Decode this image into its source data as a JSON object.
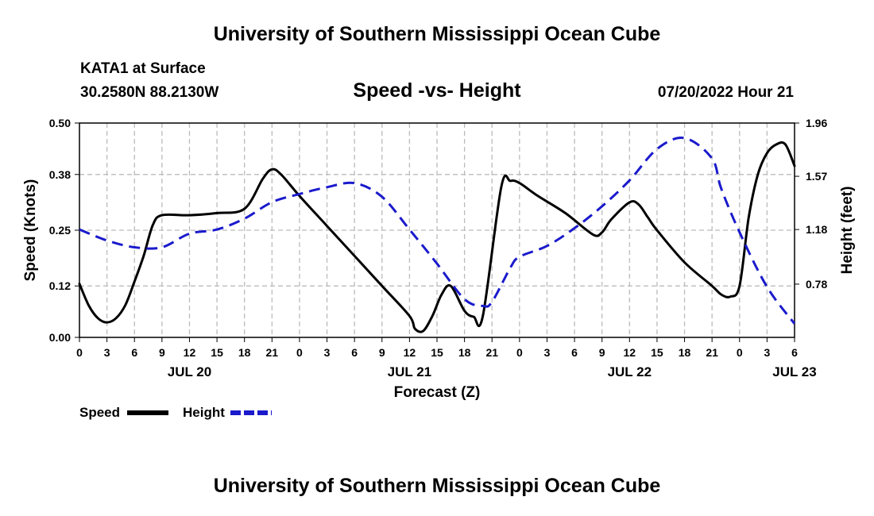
{
  "header": {
    "title": "University of Southern Mississippi Ocean Cube",
    "station": "KATA1 at Surface",
    "coords": "30.2580N  88.2130W",
    "datetime": "07/20/2022 Hour 21",
    "footer_title": "University of Southern Mississippi Ocean Cube"
  },
  "chart_data": {
    "type": "line",
    "title": "Speed -vs- Height",
    "xlabel": "Forecast (Z)",
    "ylabel_left": "Speed (Knots)",
    "ylabel_right": "Height (feet)",
    "x_unit": "hours since JUL 20 00Z",
    "xlim": [
      0,
      78
    ],
    "ylim_left": [
      0,
      0.5
    ],
    "ylim_right": [
      0.39,
      1.96
    ],
    "left_ticks": [
      "0.00",
      "0.12",
      "0.25",
      "0.38",
      "0.50"
    ],
    "right_ticks": [
      "0.78",
      "1.18",
      "1.57",
      "1.96"
    ],
    "x_tick_labels": [
      "0",
      "3",
      "6",
      "9",
      "12",
      "15",
      "18",
      "21",
      "0",
      "3",
      "6",
      "9",
      "12",
      "15",
      "18",
      "21",
      "0",
      "3",
      "6",
      "9",
      "12",
      "15",
      "18",
      "21",
      "0",
      "3",
      "6"
    ],
    "date_labels": [
      {
        "text": "JUL 20",
        "hour": 12
      },
      {
        "text": "JUL 21",
        "hour": 36
      },
      {
        "text": "JUL 22",
        "hour": 60
      },
      {
        "text": "JUL 23",
        "hour": 78
      }
    ],
    "legend": [
      {
        "name": "Speed",
        "color": "#000000",
        "dash": false
      },
      {
        "name": "Height",
        "color": "#1a1acc",
        "dash": true
      }
    ],
    "series": [
      {
        "name": "Speed",
        "axis": "left",
        "color": "#000000",
        "x": [
          0,
          1,
          2,
          3,
          4,
          5,
          6,
          7,
          8,
          9,
          12,
          15,
          18,
          20,
          21,
          22,
          24,
          27,
          30,
          33,
          36,
          36.6,
          37.5,
          38.5,
          39.5,
          40.5,
          42,
          43,
          44,
          46,
          47,
          48,
          50,
          53,
          56,
          57,
          58,
          60,
          61,
          62,
          63,
          66,
          69,
          70,
          71,
          72,
          73,
          74,
          75,
          76,
          77,
          78
        ],
        "y": [
          0.125,
          0.075,
          0.045,
          0.035,
          0.045,
          0.075,
          0.13,
          0.19,
          0.262,
          0.285,
          0.285,
          0.29,
          0.3,
          0.37,
          0.392,
          0.38,
          0.33,
          0.26,
          0.19,
          0.12,
          0.05,
          0.02,
          0.015,
          0.05,
          0.1,
          0.12,
          0.062,
          0.048,
          0.05,
          0.35,
          0.365,
          0.36,
          0.33,
          0.29,
          0.24,
          0.245,
          0.275,
          0.315,
          0.31,
          0.28,
          0.25,
          0.175,
          0.12,
          0.1,
          0.095,
          0.12,
          0.28,
          0.38,
          0.43,
          0.45,
          0.45,
          0.4
        ]
      },
      {
        "name": "Height",
        "axis": "right",
        "color": "#1a1acc",
        "x": [
          0,
          3,
          6,
          9,
          12,
          15,
          18,
          21,
          24,
          27,
          30,
          33,
          36,
          39,
          42,
          44,
          45,
          47,
          48,
          51,
          54,
          57,
          60,
          63,
          66,
          69,
          70,
          72,
          75,
          78
        ],
        "y": [
          1.18,
          1.1,
          1.05,
          1.05,
          1.15,
          1.18,
          1.26,
          1.38,
          1.44,
          1.49,
          1.52,
          1.42,
          1.18,
          0.93,
          0.67,
          0.62,
          0.65,
          0.9,
          0.98,
          1.06,
          1.19,
          1.35,
          1.54,
          1.77,
          1.85,
          1.7,
          1.48,
          1.16,
          0.76,
          0.49
        ]
      }
    ]
  }
}
